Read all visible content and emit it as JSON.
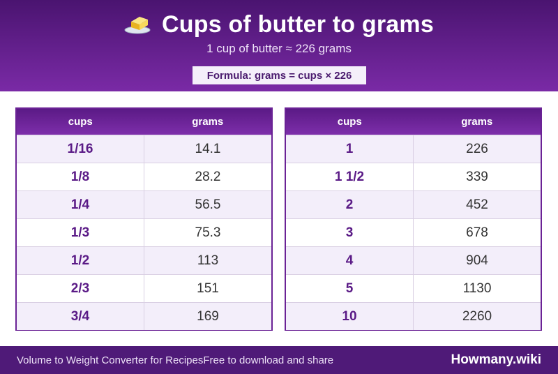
{
  "header": {
    "icon": "butter-icon",
    "title": "Cups of butter to grams",
    "subtitle": "1 cup of butter ≈ 226 grams",
    "formula": "Formula: grams = cups × 226"
  },
  "tables": [
    {
      "headers": [
        "cups",
        "grams"
      ],
      "rows": [
        [
          "1/16",
          "14.1"
        ],
        [
          "1/8",
          "28.2"
        ],
        [
          "1/4",
          "56.5"
        ],
        [
          "1/3",
          "75.3"
        ],
        [
          "1/2",
          "113"
        ],
        [
          "2/3",
          "151"
        ],
        [
          "3/4",
          "169"
        ]
      ]
    },
    {
      "headers": [
        "cups",
        "grams"
      ],
      "rows": [
        [
          "1",
          "226"
        ],
        [
          "1 1/2",
          "339"
        ],
        [
          "2",
          "452"
        ],
        [
          "3",
          "678"
        ],
        [
          "4",
          "904"
        ],
        [
          "5",
          "1130"
        ],
        [
          "10",
          "2260"
        ]
      ]
    }
  ],
  "footer": {
    "left_text": "Volume to Weight Converter for Recipes",
    "middle_text": "Free to download and share",
    "brand": "Howmany.wiki"
  },
  "colors": {
    "header_dark": "#4a1470",
    "header_light": "#7a2aa6",
    "accent": "#5a1a86",
    "row_alt": "#f3eefa"
  }
}
